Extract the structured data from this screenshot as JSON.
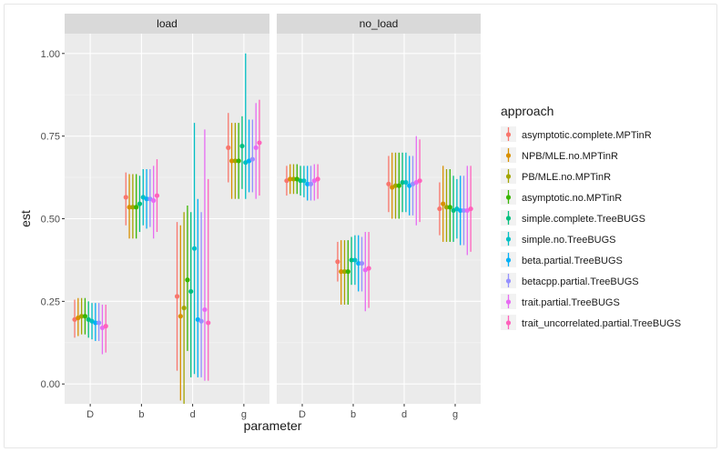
{
  "chart_data": {
    "type": "scatter",
    "subtype": "pointrange-faceted",
    "xlabel": "parameter",
    "ylabel": "est",
    "ylim": [
      -0.06,
      1.06
    ],
    "y_ticks": [
      0.0,
      0.25,
      0.5,
      0.75,
      1.0
    ],
    "y_tick_labels": [
      "0.00",
      "0.25",
      "0.50",
      "0.75",
      "1.00"
    ],
    "grid": true,
    "legend_position": "right",
    "legend_title": "approach",
    "categories": [
      "D",
      "b",
      "d",
      "g"
    ],
    "series": [
      {
        "name": "asymptotic.complete.MPTinR",
        "color": "#F8766D"
      },
      {
        "name": "NPB/MLE.no.MPTinR",
        "color": "#D89000"
      },
      {
        "name": "PB/MLE.no.MPTinR",
        "color": "#A3A500"
      },
      {
        "name": "asymptotic.no.MPTinR",
        "color": "#39B600"
      },
      {
        "name": "simple.complete.TreeBUGS",
        "color": "#00BF7D"
      },
      {
        "name": "simple.no.TreeBUGS",
        "color": "#00BFC4"
      },
      {
        "name": "beta.partial.TreeBUGS",
        "color": "#00B0F6"
      },
      {
        "name": "betacpp.partial.TreeBUGS",
        "color": "#9590FF"
      },
      {
        "name": "trait.partial.TreeBUGS",
        "color": "#E76BF3"
      },
      {
        "name": "trait_uncorrelated.partial.TreeBUGS",
        "color": "#FF62BC"
      }
    ],
    "facets": [
      {
        "label": "load",
        "data": {
          "D": {
            "est": [
              0.195,
              0.2,
              0.205,
              0.205,
              0.195,
              0.19,
              0.185,
              0.185,
              0.17,
              0.175
            ],
            "low": [
              0.14,
              0.145,
              0.15,
              0.15,
              0.14,
              0.135,
              0.13,
              0.13,
              0.09,
              0.095
            ],
            "high": [
              0.255,
              0.26,
              0.26,
              0.26,
              0.25,
              0.245,
              0.245,
              0.245,
              0.24,
              0.24
            ]
          },
          "b": {
            "est": [
              0.565,
              0.535,
              0.535,
              0.535,
              0.545,
              0.565,
              0.56,
              0.56,
              0.555,
              0.57
            ],
            "low": [
              0.48,
              0.44,
              0.44,
              0.44,
              0.46,
              0.48,
              0.47,
              0.475,
              0.44,
              0.46
            ],
            "high": [
              0.64,
              0.635,
              0.635,
              0.635,
              0.63,
              0.65,
              0.65,
              0.65,
              0.66,
              0.68
            ]
          },
          "d": {
            "est": [
              0.265,
              0.205,
              0.23,
              0.315,
              0.28,
              0.41,
              0.195,
              0.19,
              0.225,
              0.185
            ],
            "low": [
              0.04,
              -0.05,
              -0.06,
              0.1,
              0.02,
              0.03,
              0.02,
              0.02,
              0.01,
              0.01
            ],
            "high": [
              0.49,
              0.48,
              0.52,
              0.54,
              0.52,
              0.79,
              0.56,
              0.52,
              0.77,
              0.62
            ]
          },
          "g": {
            "est": [
              0.715,
              0.675,
              0.675,
              0.675,
              0.72,
              0.67,
              0.675,
              0.68,
              0.715,
              0.73
            ],
            "low": [
              0.61,
              0.56,
              0.56,
              0.56,
              0.59,
              0.56,
              0.58,
              0.58,
              0.56,
              0.57
            ],
            "high": [
              0.82,
              0.79,
              0.79,
              0.79,
              0.81,
              1.0,
              0.8,
              0.8,
              0.85,
              0.86
            ]
          }
        }
      },
      {
        "label": "no_load",
        "data": {
          "D": {
            "est": [
              0.615,
              0.62,
              0.62,
              0.62,
              0.615,
              0.615,
              0.605,
              0.605,
              0.615,
              0.62
            ],
            "low": [
              0.57,
              0.575,
              0.575,
              0.575,
              0.57,
              0.565,
              0.555,
              0.555,
              0.555,
              0.56
            ],
            "high": [
              0.66,
              0.665,
              0.665,
              0.665,
              0.66,
              0.66,
              0.66,
              0.66,
              0.665,
              0.665
            ]
          },
          "b": {
            "est": [
              0.37,
              0.34,
              0.34,
              0.34,
              0.375,
              0.375,
              0.365,
              0.365,
              0.345,
              0.35
            ],
            "low": [
              0.31,
              0.24,
              0.24,
              0.24,
              0.3,
              0.3,
              0.28,
              0.28,
              0.22,
              0.23
            ],
            "high": [
              0.43,
              0.435,
              0.435,
              0.435,
              0.445,
              0.45,
              0.45,
              0.445,
              0.46,
              0.46
            ]
          },
          "d": {
            "est": [
              0.605,
              0.595,
              0.6,
              0.6,
              0.61,
              0.61,
              0.6,
              0.605,
              0.61,
              0.615
            ],
            "low": [
              0.52,
              0.5,
              0.5,
              0.5,
              0.52,
              0.52,
              0.51,
              0.51,
              0.48,
              0.49
            ],
            "high": [
              0.69,
              0.7,
              0.7,
              0.7,
              0.7,
              0.7,
              0.69,
              0.69,
              0.75,
              0.74
            ]
          },
          "g": {
            "est": [
              0.53,
              0.545,
              0.535,
              0.535,
              0.525,
              0.53,
              0.525,
              0.525,
              0.525,
              0.53
            ],
            "low": [
              0.45,
              0.43,
              0.43,
              0.43,
              0.43,
              0.44,
              0.42,
              0.42,
              0.39,
              0.4
            ],
            "high": [
              0.61,
              0.66,
              0.65,
              0.65,
              0.63,
              0.62,
              0.63,
              0.63,
              0.66,
              0.66
            ]
          }
        }
      }
    ]
  }
}
